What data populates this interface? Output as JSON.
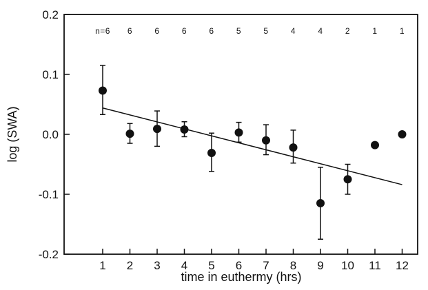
{
  "chart_data": {
    "type": "scatter",
    "title": "",
    "xlabel": "time in euthermy (hrs)",
    "ylabel": "log (SWA)",
    "xlim": [
      0,
      12.8
    ],
    "ylim": [
      -0.2,
      0.2
    ],
    "x_ticks": [
      "1",
      "2",
      "3",
      "4",
      "5",
      "6",
      "7",
      "8",
      "9",
      "10",
      "11",
      "12"
    ],
    "y_ticks": [
      "0.2",
      "0.1",
      "0.0",
      "-0.1",
      "-0.2"
    ],
    "sample_sizes": [
      "n=6",
      "6",
      "6",
      "6",
      "6",
      "5",
      "5",
      "4",
      "4",
      "2",
      "1",
      "1"
    ],
    "points": [
      {
        "x": 1,
        "y": 0.073,
        "err_low": 0.033,
        "err_high": 0.115
      },
      {
        "x": 2,
        "y": 0.001,
        "err_low": -0.015,
        "err_high": 0.018
      },
      {
        "x": 3,
        "y": 0.009,
        "err_low": -0.02,
        "err_high": 0.039
      },
      {
        "x": 4,
        "y": 0.008,
        "err_low": -0.004,
        "err_high": 0.021
      },
      {
        "x": 5,
        "y": -0.031,
        "err_low": -0.062,
        "err_high": 0.002
      },
      {
        "x": 6,
        "y": 0.003,
        "err_low": -0.013,
        "err_high": 0.02
      },
      {
        "x": 7,
        "y": -0.01,
        "err_low": -0.034,
        "err_high": 0.016
      },
      {
        "x": 8,
        "y": -0.022,
        "err_low": -0.048,
        "err_high": 0.007
      },
      {
        "x": 9,
        "y": -0.115,
        "err_low": -0.175,
        "err_high": -0.055
      },
      {
        "x": 10,
        "y": -0.075,
        "err_low": -0.1,
        "err_high": -0.05
      },
      {
        "x": 11,
        "y": -0.018
      },
      {
        "x": 12,
        "y": 0.0
      }
    ],
    "regression_line": {
      "x": [
        1,
        12
      ],
      "y": [
        0.044,
        -0.084
      ]
    },
    "grid": false,
    "marker_color": "#111111"
  }
}
